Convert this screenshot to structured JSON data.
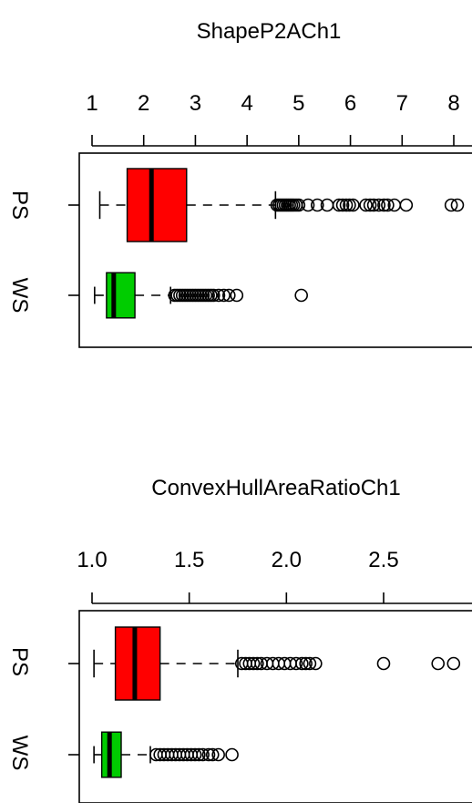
{
  "chart_data": [
    {
      "type": "boxplot",
      "title": "ShapeP2ACh1",
      "orientation": "horizontal",
      "xticks": [
        1,
        2,
        3,
        4,
        5,
        6,
        7,
        8
      ],
      "xlim": [
        0.75,
        8.3
      ],
      "categories": [
        "PS",
        "WS"
      ],
      "series": [
        {
          "name": "PS",
          "color": "#ff0000",
          "whisker_low": 1.15,
          "q1": 1.68,
          "median": 2.15,
          "q3": 2.83,
          "whisker_high": 4.55,
          "outliers": [
            4.58,
            4.62,
            4.66,
            4.7,
            4.74,
            4.78,
            4.82,
            4.86,
            4.9,
            4.95,
            5.0,
            5.18,
            5.36,
            5.55,
            5.78,
            5.85,
            5.92,
            5.98,
            6.05,
            6.3,
            6.38,
            6.45,
            6.55,
            6.65,
            6.72,
            6.85,
            7.08,
            7.95,
            8.07
          ]
        },
        {
          "name": "WS",
          "color": "#00cc00",
          "whisker_low": 1.05,
          "q1": 1.28,
          "median": 1.42,
          "q3": 1.83,
          "whisker_high": 2.52,
          "outliers": [
            2.6,
            2.65,
            2.7,
            2.75,
            2.8,
            2.85,
            2.9,
            2.95,
            3.0,
            3.05,
            3.1,
            3.15,
            3.2,
            3.25,
            3.3,
            3.35,
            3.45,
            3.55,
            3.65,
            3.8,
            5.05
          ]
        }
      ]
    },
    {
      "type": "boxplot",
      "title": "ConvexHullAreaRatioCh1",
      "orientation": "horizontal",
      "xticks": [
        "1.0",
        "1.5",
        "2.0",
        "2.5"
      ],
      "xlim": [
        0.935,
        2.9
      ],
      "categories": [
        "PS",
        "WS"
      ],
      "series": [
        {
          "name": "PS",
          "color": "#ff0000",
          "whisker_low": 1.01,
          "q1": 1.12,
          "median": 1.22,
          "q3": 1.35,
          "whisker_high": 1.75,
          "outliers": [
            1.77,
            1.79,
            1.81,
            1.83,
            1.85,
            1.87,
            1.9,
            1.93,
            1.96,
            1.99,
            2.02,
            2.05,
            2.08,
            2.1,
            2.12,
            2.15,
            2.5,
            2.78,
            2.86
          ]
        },
        {
          "name": "WS",
          "color": "#00cc00",
          "whisker_low": 1.01,
          "q1": 1.05,
          "median": 1.09,
          "q3": 1.15,
          "whisker_high": 1.3,
          "outliers": [
            1.33,
            1.35,
            1.37,
            1.39,
            1.41,
            1.43,
            1.45,
            1.47,
            1.49,
            1.51,
            1.53,
            1.55,
            1.57,
            1.6,
            1.62,
            1.65,
            1.72
          ]
        }
      ]
    }
  ]
}
